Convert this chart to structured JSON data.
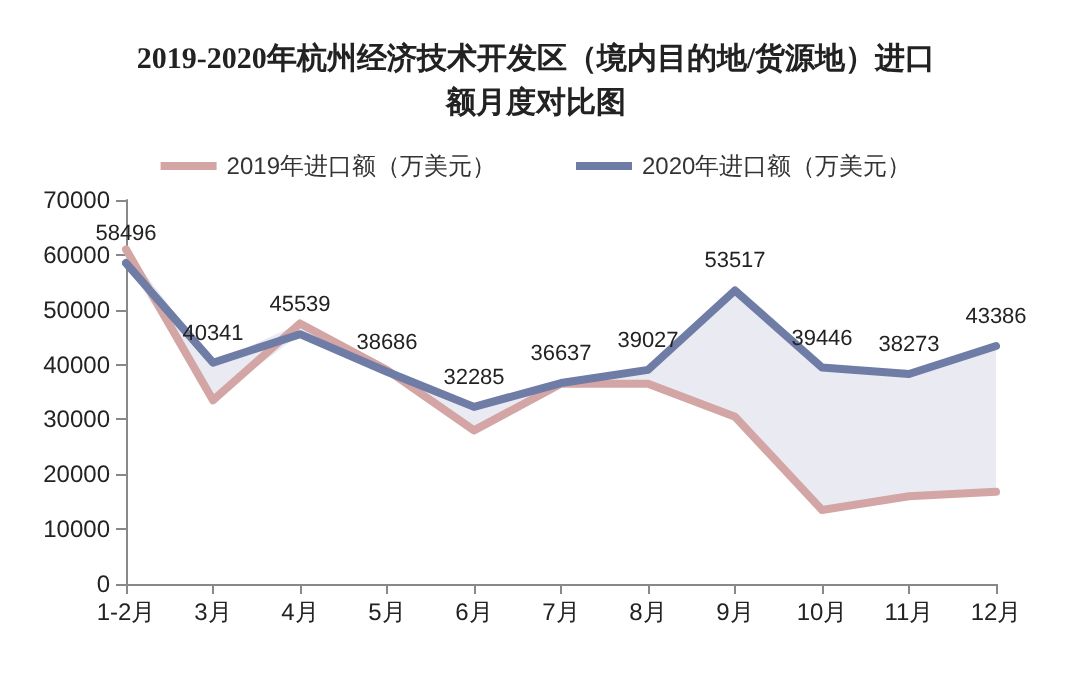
{
  "chart_data": {
    "type": "line",
    "title": "2019-2020年杭州经济技术开发区（境内目的地/货源地）进口额月度对比图",
    "categories": [
      "1-2月",
      "3月",
      "4月",
      "5月",
      "6月",
      "7月",
      "8月",
      "9月",
      "10月",
      "11月",
      "12月"
    ],
    "series": [
      {
        "name": "2019年进口额（万美元）",
        "color": "#d4a5a5",
        "values": [
          61000,
          33500,
          47500,
          39000,
          28000,
          36500,
          36500,
          30500,
          13500,
          16000,
          16800
        ]
      },
      {
        "name": "2020年进口额（万美元）",
        "color": "#6e7ca6",
        "values": [
          58496,
          40341,
          45539,
          38686,
          32285,
          36637,
          39027,
          53517,
          39446,
          38273,
          43386
        ],
        "lower": [
          61000,
          33500,
          47500,
          39000,
          28000,
          36500,
          36500,
          30500,
          13500,
          16000,
          16800
        ],
        "upper": [
          58496,
          40341,
          45539,
          38686,
          32285,
          36637,
          39027,
          53517,
          39446,
          38273,
          43386
        ],
        "value_labels": [
          "58496",
          "40341",
          "45539",
          "38686",
          "32285",
          "36637",
          "39027",
          "53517",
          "39446",
          "38273",
          "43386"
        ]
      }
    ],
    "ylim": [
      0,
      70000
    ],
    "yticks": [
      0,
      10000,
      20000,
      30000,
      40000,
      50000,
      60000,
      70000
    ],
    "grid": false,
    "legend": "top",
    "marker": "none",
    "line_style": "solid"
  }
}
